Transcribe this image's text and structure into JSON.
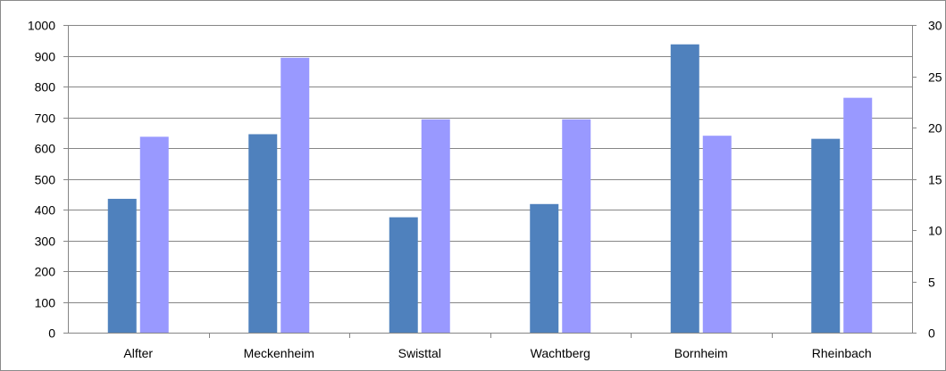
{
  "chart_data": {
    "type": "bar",
    "title": "",
    "xlabel": "",
    "ylabel": "",
    "categories": [
      "Alfter",
      "Meckenheim",
      "Swisttal",
      "Wachtberg",
      "Bornheim",
      "Rheinbach"
    ],
    "series": [
      {
        "axis": "left",
        "color": "#4f81bd",
        "values": [
          435,
          645,
          375,
          418,
          937,
          630
        ]
      },
      {
        "axis": "right",
        "color": "#9999ff",
        "values": [
          19.1,
          26.8,
          20.8,
          20.8,
          19.2,
          22.9
        ]
      }
    ],
    "ylim": [
      0,
      1000
    ],
    "yticks": [
      "0",
      "100",
      "200",
      "300",
      "400",
      "500",
      "600",
      "700",
      "800",
      "900",
      "1000"
    ],
    "y2lim": [
      0,
      30
    ],
    "y2ticks": [
      "0",
      "5",
      "10",
      "15",
      "20",
      "25",
      "30"
    ],
    "grid": true,
    "gridline_color": "#868686",
    "legend": "none"
  }
}
